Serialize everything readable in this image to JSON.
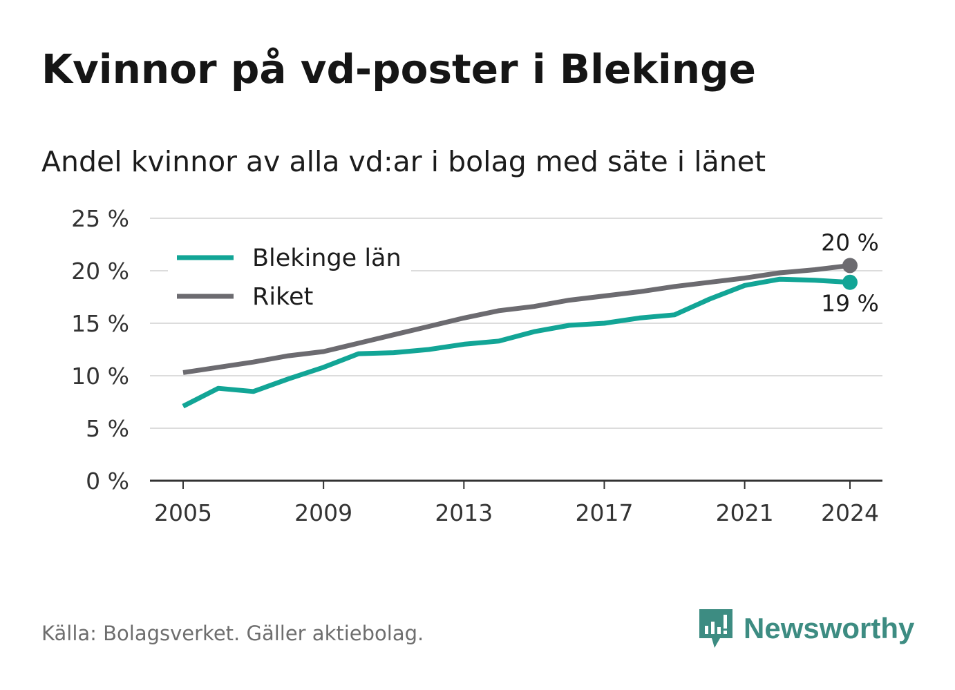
{
  "title": "Kvinnor på vd-poster i Blekinge",
  "subtitle": "Andel kvinnor av alla vd:ar i bolag med säte i länet",
  "source": "Källa: Bolagsverket. Gäller aktiebolag.",
  "brand": "Newsworthy",
  "colors": {
    "blekinge": "#12a596",
    "riket": "#6c6b70",
    "grid": "#dcdcdc",
    "axis": "#333333",
    "brand": "#3d8c82"
  },
  "chart_data": {
    "type": "line",
    "x": [
      2005,
      2006,
      2007,
      2008,
      2009,
      2010,
      2011,
      2012,
      2013,
      2014,
      2015,
      2016,
      2017,
      2018,
      2019,
      2020,
      2021,
      2022,
      2023,
      2024
    ],
    "x_ticks": [
      "2005",
      "2009",
      "2013",
      "2017",
      "2021",
      "2024"
    ],
    "y_ticks": [
      "0 %",
      "5 %",
      "10 %",
      "15 %",
      "20 %",
      "25 %"
    ],
    "ylim": [
      0,
      25
    ],
    "grid": true,
    "legend_position": "top-left",
    "series": [
      {
        "name": "Blekinge län",
        "color": "#12a596",
        "values": [
          7.1,
          8.8,
          8.5,
          9.7,
          10.8,
          12.1,
          12.2,
          12.5,
          13.0,
          13.3,
          14.2,
          14.8,
          15.0,
          15.5,
          15.8,
          17.3,
          18.6,
          19.2,
          19.1,
          18.9
        ],
        "end_label": "19 %"
      },
      {
        "name": "Riket",
        "color": "#6c6b70",
        "values": [
          10.3,
          10.8,
          11.3,
          11.9,
          12.3,
          13.1,
          13.9,
          14.7,
          15.5,
          16.2,
          16.6,
          17.2,
          17.6,
          18.0,
          18.5,
          18.9,
          19.3,
          19.8,
          20.1,
          20.5
        ],
        "end_label": "20 %"
      }
    ]
  }
}
